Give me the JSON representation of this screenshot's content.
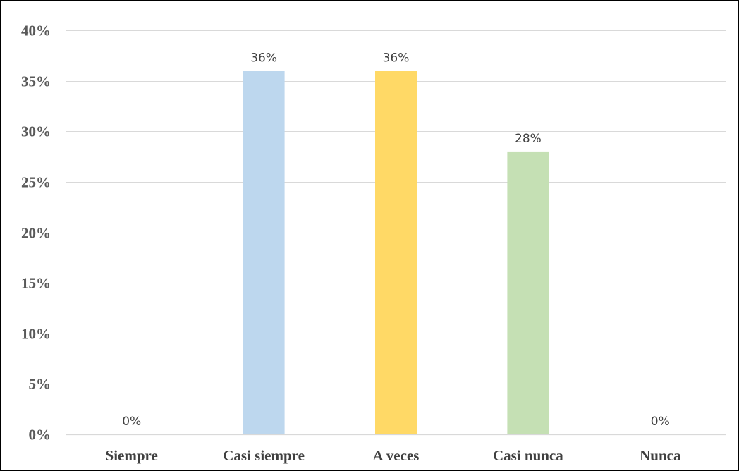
{
  "chart_data": {
    "type": "bar",
    "categories": [
      "Siempre",
      "Casi siempre",
      "A veces",
      "Casi nunca",
      "Nunca"
    ],
    "values": [
      0,
      36,
      36,
      28,
      0
    ],
    "data_labels": [
      "0%",
      "36%",
      "36%",
      "28%",
      "0%"
    ],
    "colors": [
      "#bdd7ee",
      "#bdd7ee",
      "#ffd966",
      "#c5e0b4",
      "#c5e0b4"
    ],
    "ylim": [
      0,
      40
    ],
    "yticks": [
      {
        "value": 0,
        "label": "0%"
      },
      {
        "value": 5,
        "label": "5%"
      },
      {
        "value": 10,
        "label": "10%"
      },
      {
        "value": 15,
        "label": "15%"
      },
      {
        "value": 20,
        "label": "20%"
      },
      {
        "value": 25,
        "label": "25%"
      },
      {
        "value": 30,
        "label": "30%"
      },
      {
        "value": 35,
        "label": "35%"
      },
      {
        "value": 40,
        "label": "40%"
      }
    ],
    "grid": true,
    "legend": "none"
  }
}
